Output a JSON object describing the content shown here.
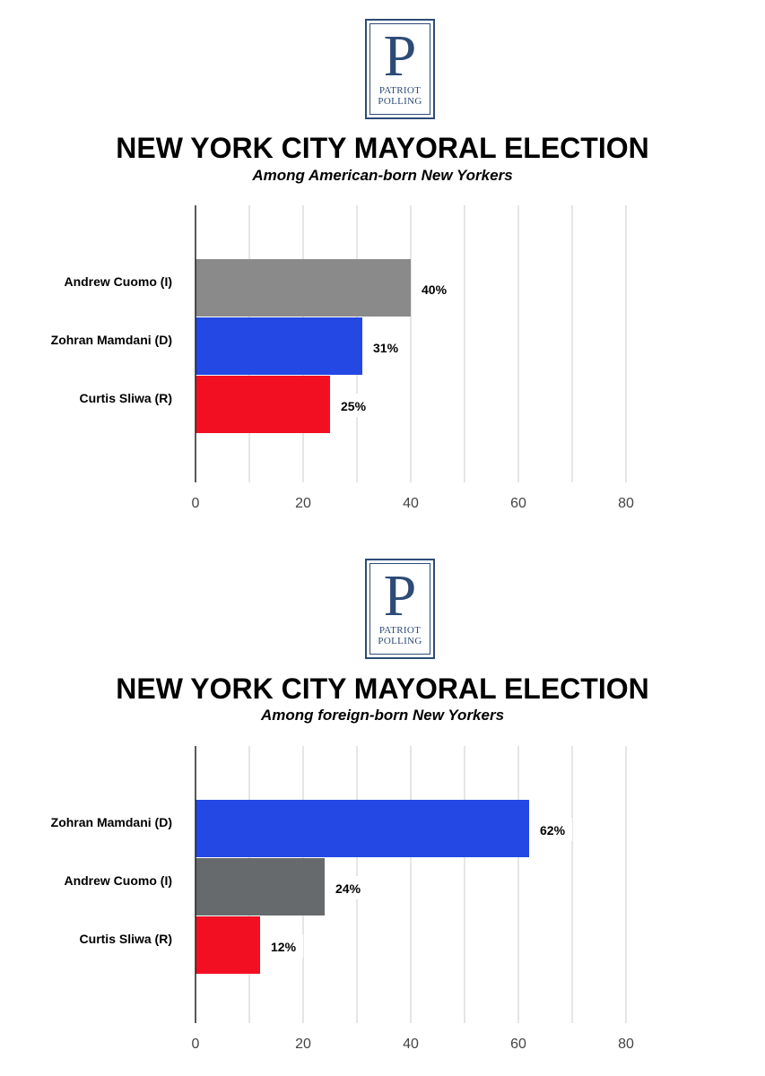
{
  "logo": {
    "letter": "P",
    "line1": "PATRIOT",
    "line2": "POLLING"
  },
  "chart_data": [
    {
      "type": "bar",
      "orientation": "horizontal",
      "title": "NEW YORK CITY MAYORAL ELECTION",
      "subtitle": "Among American-born New Yorkers",
      "categories": [
        "Andrew Cuomo (I)",
        "Zohran Mamdani (D)",
        "Curtis Sliwa (R)"
      ],
      "values": [
        40,
        31,
        25
      ],
      "value_labels": [
        "40%",
        "31%",
        "25%"
      ],
      "colors": [
        "#8a8a8a",
        "#2348e3",
        "#f20f22"
      ],
      "xlim": [
        0,
        80
      ],
      "xticks": [
        "0",
        "20",
        "40",
        "60",
        "80"
      ],
      "grid": true
    },
    {
      "type": "bar",
      "orientation": "horizontal",
      "title": "NEW YORK CITY MAYORAL ELECTION",
      "subtitle": "Among foreign-born New Yorkers",
      "categories": [
        "Zohran Mamdani (D)",
        "Andrew Cuomo (I)",
        "Curtis Sliwa (R)"
      ],
      "values": [
        62,
        24,
        12
      ],
      "value_labels": [
        "62%",
        "24%",
        "12%"
      ],
      "colors": [
        "#2348e3",
        "#666a6d",
        "#f20f22"
      ],
      "xlim": [
        0,
        80
      ],
      "xticks": [
        "0",
        "20",
        "40",
        "60",
        "80"
      ],
      "grid": true
    }
  ]
}
